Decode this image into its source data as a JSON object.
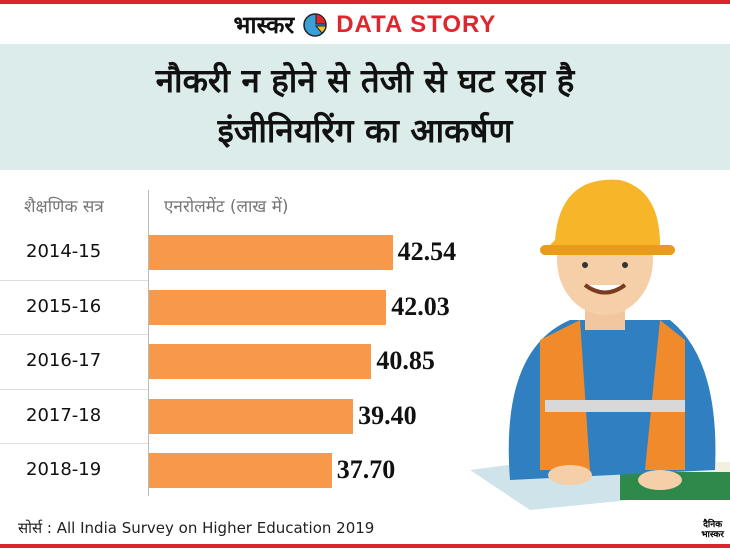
{
  "brand": {
    "hindi": "भास्कर",
    "data_story": "DATA STORY"
  },
  "title_lines": [
    "नौकरी न होने से  तेजी से घट रहा है",
    "इंजीनियरिंग का आकर्षण"
  ],
  "chart_data": {
    "type": "bar",
    "orientation": "horizontal",
    "title": "नौकरी न होने से  तेजी से घट रहा है इंजीनियरिंग का आकर्षण",
    "category_header": "शैक्षणिक सत्र",
    "value_header": "एनरोलमेंट (लाख में)",
    "categories": [
      "2014-15",
      "2015-16",
      "2016-17",
      "2017-18",
      "2018-19"
    ],
    "values": [
      42.54,
      42.03,
      40.85,
      39.4,
      37.7
    ],
    "value_labels": [
      "42.54",
      "42.03",
      "40.85",
      "39.40",
      "37.70"
    ],
    "xlim": [
      23.2,
      45
    ],
    "bar_color": "#f7984a"
  },
  "source": "सोर्स : All India Survey on Higher Education 2019",
  "footer_logo": [
    "दैनिक",
    "भास्कर"
  ]
}
